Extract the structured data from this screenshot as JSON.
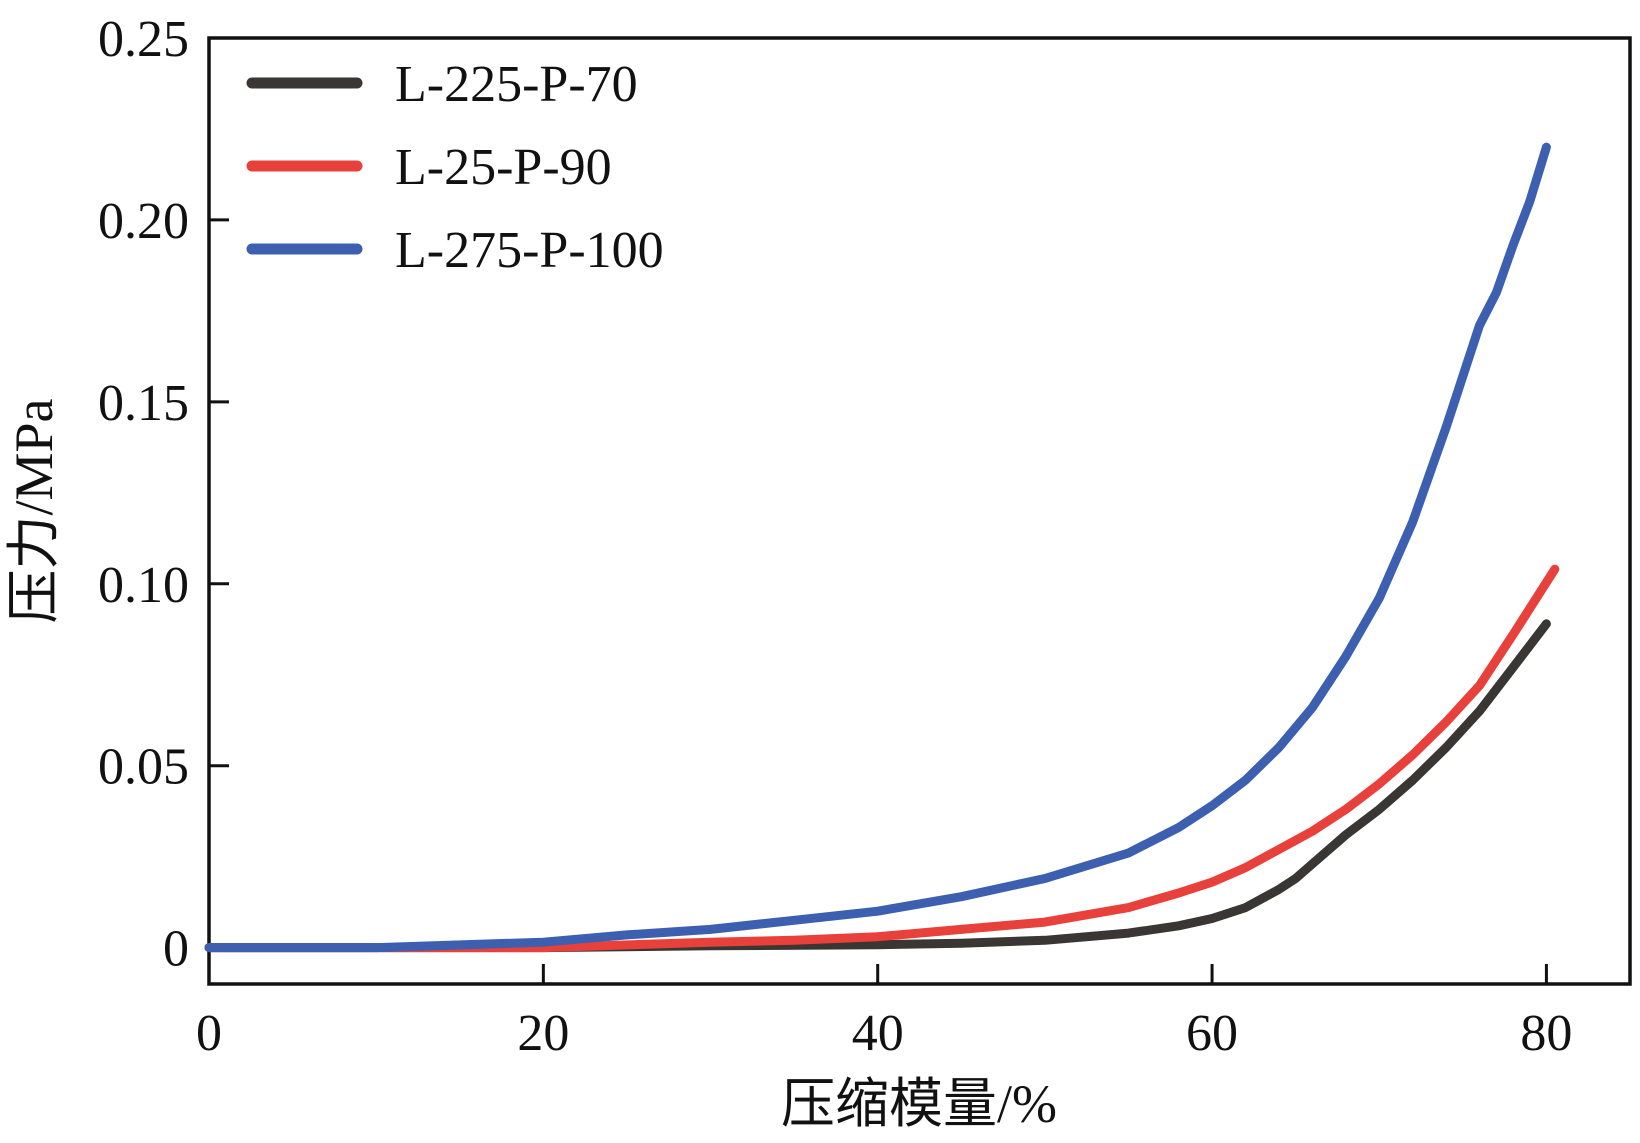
{
  "chart_data": {
    "type": "line",
    "title": "",
    "xlabel": "压缩模量/%",
    "ylabel": "压力/MPa",
    "xlim": [
      0,
      85
    ],
    "ylim": [
      -0.01,
      0.25
    ],
    "xticks": [
      0,
      20,
      40,
      60,
      80
    ],
    "xtick_labels": [
      "0",
      "20",
      "40",
      "60",
      "80"
    ],
    "yticks": [
      0,
      0.05,
      0.1,
      0.15,
      0.2,
      0.25
    ],
    "ytick_labels": [
      "0",
      "0.05",
      "0.10",
      "0.15",
      "0.20",
      "0.25"
    ],
    "grid": false,
    "legend_position": "top-left",
    "series": [
      {
        "name": "L-225-P-70",
        "color": "#3a3634",
        "x": [
          0,
          10,
          20,
          30,
          40,
          45,
          50,
          55,
          58,
          60,
          62,
          64,
          65,
          66,
          68,
          70,
          72,
          74,
          76,
          78,
          80
        ],
        "y": [
          0,
          0,
          0,
          0.0005,
          0.0008,
          0.0012,
          0.002,
          0.004,
          0.006,
          0.008,
          0.011,
          0.016,
          0.019,
          0.023,
          0.031,
          0.038,
          0.046,
          0.055,
          0.065,
          0.077,
          0.089
        ]
      },
      {
        "name": "L-25-P-90",
        "color": "#e8403a",
        "x": [
          0,
          10,
          20,
          30,
          35,
          40,
          45,
          50,
          55,
          58,
          60,
          62,
          64,
          66,
          68,
          70,
          72,
          74,
          76,
          78,
          80.5
        ],
        "y": [
          0,
          0,
          0,
          0.0015,
          0.002,
          0.003,
          0.005,
          0.007,
          0.011,
          0.015,
          0.018,
          0.022,
          0.027,
          0.032,
          0.038,
          0.045,
          0.053,
          0.062,
          0.072,
          0.086,
          0.104
        ]
      },
      {
        "name": "L-275-P-100",
        "color": "#3c5fb0",
        "x": [
          0,
          10,
          20,
          25,
          30,
          35,
          40,
          45,
          50,
          55,
          58,
          60,
          62,
          64,
          66,
          68,
          70,
          72,
          74,
          76,
          77,
          78,
          79,
          80
        ],
        "y": [
          0,
          0,
          0.0015,
          0.0035,
          0.005,
          0.0075,
          0.01,
          0.014,
          0.019,
          0.026,
          0.033,
          0.039,
          0.046,
          0.055,
          0.066,
          0.08,
          0.096,
          0.117,
          0.143,
          0.171,
          0.18,
          0.193,
          0.205,
          0.22
        ]
      }
    ]
  }
}
